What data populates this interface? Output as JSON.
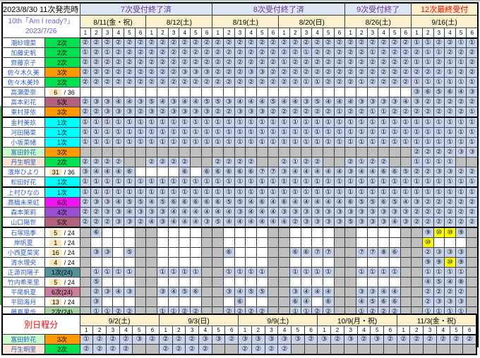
{
  "colors": {
    "cell_available_bg": "#c8d4ea",
    "cell_soldout_bg": "#ffffff",
    "cell_notoffered_bg": "#bfbfbf",
    "cell_highlight_bg": "#ffff00",
    "phase_blue_bg": "#dce6f2",
    "phase_blue_text": "#7030a0",
    "phase_yellow_bg": "#fdf0cd",
    "phase_yellow_text": "#ff0000",
    "date_header_bg": "#fdf0cd",
    "member_name_text": "#2f5fc4",
    "count_badge_bg": "#fce8b8"
  },
  "tier_colors": {
    "1次": "#00ffff",
    "2次": "#00e050",
    "3次": "#ff9900",
    "4次": "#9a4fd0",
    "5次": "#b2627f",
    "6次": "#f213f2",
    "1次(24)": "#54919b",
    "2次(24)": "#a6d3a3",
    "3次(24)": "#f4b183",
    "6次(24)": "#ca7e9b"
  },
  "main": {
    "title": "2023/8/30 11次発売時",
    "subtitle_line1": "10th「Am I ready?」",
    "subtitle_line2": "2023/7/26",
    "phases": [
      {
        "label": "7次受付終了済",
        "style": "blue",
        "span_dates": 2
      },
      {
        "label": "8次受付終了済",
        "style": "blue",
        "span_dates": 2
      },
      {
        "label": "9次受付終了",
        "style": "blue",
        "span_dates": 1
      },
      {
        "label": "12次最終受付",
        "style": "yellow",
        "span_dates": 1
      }
    ],
    "dates": [
      "8/11(金・祝)",
      "8/12(土)",
      "8/19(土)",
      "8/20(日)",
      "8/26(土)",
      "9/16(土)"
    ],
    "slots": [
      "1",
      "2",
      "3",
      "4",
      "5",
      "6"
    ],
    "members": [
      {
        "name": "潮紗理菜",
        "status": {
          "type": "tier",
          "label": "2次"
        },
        "cells": "2,2,2,2,2,2,2,2,2,2,2,2,2,2,2,2,2,2,2,2,2,2,2,2,2,2,2,2,2,2,1,1,2,2,1,1"
      },
      {
        "name": "加藤史帆",
        "status": {
          "type": "tier",
          "label": "2次"
        },
        "cells": "1,2,1,2,2,2,2,2,2,2,2,2,2,2,2,2,2,2,2,2,1,2,2,2,2,2,1,2,2,2,2,1,1,2,2,2"
      },
      {
        "name": "齊藤京子",
        "status": {
          "type": "tier",
          "label": "2次"
        },
        "cells": "2,2,2,2,2,2,2,2,2,2,2,2,2,2,2,2,2,2,1,2,2,2,2,2,2,2,2,2,2,2,1,1,2,1,1,2"
      },
      {
        "name": "佐々木久美",
        "status": {
          "type": "tier",
          "label": "3次"
        },
        "cells": "2,2,2,2,2,2,2,2,2,3,3,3,2,2,2,3,3,2,2,2,2,2,2,2,2,2,2,2,2,2,2,2,2,1,2,2"
      },
      {
        "name": "佐々木美玲",
        "status": {
          "type": "tier",
          "label": "2次"
        },
        "cells": "2,2,2,2,2,2,2,2,2,2,2,2,2,2,2,2,2,2,2,2,1,1,2,2,2,1,2,2,2,2,1,1,1,1,1,1"
      },
      {
        "name": "高瀬愛奈",
        "status": {
          "type": "count",
          "num": "6",
          "total": "36"
        },
        "cells": ".,.,.,.,.,.,.,.,.,.,.,.,.,.,.,.,.,.,.,.,.,.,.,.,.,.,.,.,.,.,3,6,5,6,4,3"
      },
      {
        "name": "高本彩花",
        "status": {
          "type": "tier",
          "label": "5次"
        },
        "cells": "2,3,3,4,4,3,5,4,3,4,4,5,5,3,4,4,4,5,4,4,3,5,4,4,4,3,3,3,3,4,3,2,2,2,2,2"
      },
      {
        "name": "東村芽依",
        "status": {
          "type": "tier",
          "label": "3次"
        },
        "cells": "2,2,3,3,3,2,3,2,3,3,3,3,2,2,3,3,3,2,2,2,2,2,2,1,2,2,1,1,2,2,2,2,2,2,2,1"
      },
      {
        "name": "金村美玖",
        "gen_break": true,
        "status": {
          "type": "tier",
          "label": "1次"
        },
        "cells": "1,1,1,1,1,1,1,1,1,1,1,1,1,1,1,1,1,1,1,1,1,1,1,1,1,1,1,1,1,1,1,1,1,1,1,1"
      },
      {
        "name": "河田陽菜",
        "status": {
          "type": "tier",
          "label": "1次"
        },
        "cells": "1,1,1,1,1,1,1,1,1,1,1,1,1,1,1,1,1,1,1,1,1,1,1,1,1,1,1,1,1,1,1,1,1,1,1,1"
      },
      {
        "name": "小坂菜緒",
        "status": {
          "type": "tier",
          "label": "1次"
        },
        "cells": "1,1,1,1,1,1,1,1,1,1,1,1,1,1,1,1,1,1,1,1,1,1,1,1,1,1,1,1,1,1,1,1,1,1,1,1"
      },
      {
        "name": "富田鈴花",
        "name_bg": "#ccffcc",
        "status": {
          "type": "tier",
          "label": "3次"
        },
        "cells": "-,-,-,-,-,-,-,-,-,-,-,-,-,-,-,-,-,-,-,-,-,-,-,-,-,-,-,-,-,-,2,2,2,2,3,3"
      },
      {
        "name": "丹生明里",
        "name_bg": "#fce4d6",
        "status": {
          "type": "tier",
          "label": "2次"
        },
        "cells": "2,2,2,2,-,-,2,2,2,2,-,-,2,2,2,2,-,-,2,1,2,2,-,-,2,1,2,2,-,-,1,1,1,1,-,-"
      },
      {
        "name": "濱岸ひより",
        "status": {
          "type": "count",
          "num": "31",
          "total": "36"
        },
        "cells": "3,4,4,4,6,.,.,.,.,6,.,6,6,6,6,6,7,7,3,4,4,4,4,4,3,4,4,6,6,5,2,2,3,3,2,2"
      },
      {
        "name": "松田好花",
        "status": {
          "type": "tier",
          "label": "1次"
        },
        "cells": "1,1,1,1,1,1,1,1,1,1,1,1,1,1,1,1,1,1,1,1,1,1,1,1,1,1,1,1,1,1,1,1,1,1,1,1"
      },
      {
        "name": "上村ひなの",
        "gen_break": true,
        "status": {
          "type": "tier",
          "label": "1次"
        },
        "cells": "1,1,1,1,1,1,1,1,1,1,1,1,1,1,1,1,1,1,1,1,1,1,1,1,1,1,1,1,1,1,1,1,1,1,1,1"
      },
      {
        "name": "髙橋未来虹",
        "status": {
          "type": "tier",
          "label": "6次"
        },
        "cells": "2,3,3,4,5,5,4,5,6,6,6,6,6,5,5,4,6,4,6,4,4,4,4,4,6,5,5,6,5,4,3,2,2,2,2,2"
      },
      {
        "name": "森本茉莉",
        "status": {
          "type": "tier",
          "label": "4次"
        },
        "cells": "2,2,3,3,4,3,3,3,4,4,4,4,4,4,3,4,4,4,3,3,3,3,3,3,3,3,3,3,3,3,2,2,2,2,2,2"
      },
      {
        "name": "山口陽世",
        "status": {
          "type": "tier",
          "label": "5次"
        },
        "cells": "2,2,2,3,3,2,4,3,4,4,4,3,5,4,4,4,4,4,4,2,3,3,3,3,5,3,3,3,4,3,2,2,2,2,2,2"
      },
      {
        "name": "石塚瑶季",
        "gen_break": true,
        "status": {
          "type": "count",
          "num": "5",
          "total": "24"
        },
        "cells": "-,6,.,.,.,-,-,.,.,.,.,-,-,.,.,.,.,-,-,.,.,.,.,-,-,.,.,.,.,-,-,9,10,10,9,-"
      },
      {
        "name": "岸帆夏",
        "status": {
          "type": "count",
          "num": "1",
          "total": "24"
        },
        "cells": "-,.,.,.,.,-,-,.,.,.,.,-,-,.,.,.,.,-,-,.,.,.,.,-,-,.,.,.,.,-,-,10,.,.,.,-"
      },
      {
        "name": "小西夏菜実",
        "status": {
          "type": "count",
          "num": "16",
          "total": "24"
        },
        "cells": "-,3,3,.,5,-,-,.,.,.,.,-,-,6,.,.,.,-,-,6,6,7,7,-,-,7,7,8,6,-,-,2,3,3,3,-"
      },
      {
        "name": "清水理央",
        "status": {
          "type": "count",
          "num": "4",
          "total": "24"
        },
        "cells": "-,.,.,.,.,-,-,.,.,.,.,-,-,.,.,.,.,-,-,.,.,.,.,-,-,.,.,.,.,-,-,9,9,10,9,-"
      },
      {
        "name": "正源司陽子",
        "status": {
          "type": "tier",
          "label": "1次(24)"
        },
        "cells": "-,1,1,1,1,-,-,1,1,1,1,-,-,1,1,1,1,-,-,1,1,1,1,-,-,1,1,1,1,-,-,1,1,1,1,-"
      },
      {
        "name": "竹内希来里",
        "status": {
          "type": "count",
          "num": "5",
          "total": "24"
        },
        "cells": "-,5,.,.,.,-,-,.,.,.,.,-,-,.,.,.,.,-,-,.,.,.,.,-,-,.,.,.,.,-,-,4,5,4,8,-"
      },
      {
        "name": "平尾帆夏",
        "status": {
          "type": "tier",
          "label": "6次(24)"
        },
        "cells": "-,2,3,4,3,-,-,3,4,5,6,-,-,3,4,5,5,-,-,3,4,4,4,-,-,3,3,4,4,-,-,2,2,2,2,-"
      },
      {
        "name": "平岡海月",
        "status": {
          "type": "count",
          "num": "13",
          "total": "24"
        },
        "cells": "-,3,.,.,.,-,-,.,.,.,.,-,-,.,6,.,.,-,-,6,4,.,6,-,-,4,5,6,6,-,-,2,3,3,3,-"
      },
      {
        "name": "藤嶌果歩",
        "status": {
          "type": "tier",
          "label": "2次(24)"
        },
        "cells": "-,1,1,2,2,-,-,1,1,2,2,-,-,2,2,2,2,-,-,1,1,2,2,-,-,1,2,2,2,-,-,1,1,1,1,-"
      },
      {
        "name": "宮地すみれ",
        "status": {
          "type": "tier",
          "label": "3次(24)"
        },
        "cells": "-,2,2,3,3,-,-,2,3,3,3,-,-,3,3,3,3,-,-,3,2,3,3,-,-,2,3,3,3,-,-,2,2,2,2,-"
      },
      {
        "name": "山下葉留花",
        "status": {
          "type": "count",
          "num": "18",
          "total": "24"
        },
        "cells": "-,2,3,6,.,-,-,6,.,.,.,-,-,6,7,.,.,-,-,5,6,6,6,-,-,3,4,6,7,-,-,2,2,3,2,-"
      },
      {
        "name": "渡辺莉奈",
        "status": {
          "type": "count",
          "num": "6",
          "total": "24"
        },
        "cells": "-,4,.,.,.,-,-,.,.,.,.,-,-,.,.,.,.,-,-,.,.,.,.,-,-,8,.,.,.,-,-,3,7,7,6,-"
      }
    ]
  },
  "second": {
    "label": "別日程分",
    "dates": [
      "9/2(土)",
      "9/3(日)",
      "9/9(土)",
      "10/9(月・祝)",
      "11/3(金・祝)"
    ],
    "slots": [
      "1",
      "2",
      "3",
      "4",
      "5",
      "6"
    ],
    "members": [
      {
        "name": "富田鈴花",
        "name_bg": "#ccffcc",
        "status": {
          "type": "tier",
          "label": "3次"
        },
        "cells": "1,2,2,2,3,2,2,2,2,3,3,2,3,3,3,3,3,2,3,2,3,2,3,2,2,2,2,2,2,2"
      },
      {
        "name": "丹生明里",
        "name_bg": "#fce4d6",
        "status": {
          "type": "tier",
          "label": "2次"
        },
        "cells": "2,2,2,2,-,-,2,2,2,2,-,-,2,2,2,2,-,-,-,-,-,-,-,-,-,-,-,-,-,-"
      }
    ]
  }
}
